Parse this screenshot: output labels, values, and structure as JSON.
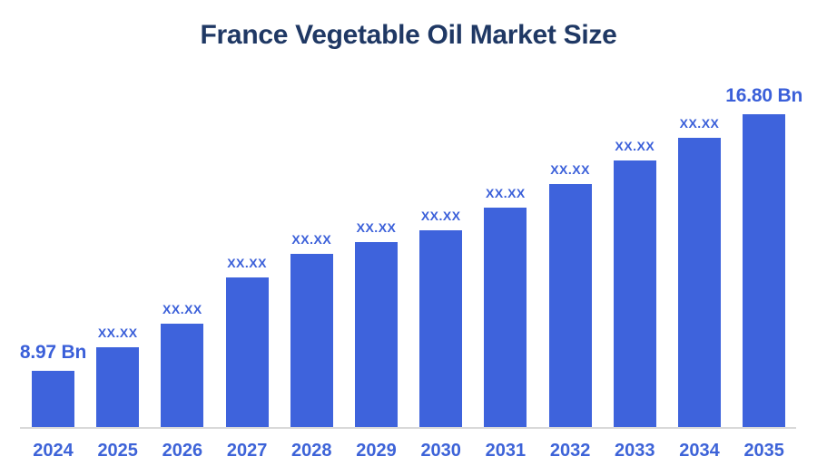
{
  "page": {
    "background": "#FFFFFF"
  },
  "header": {
    "title": "France Vegetable Oil Market Size"
  },
  "colors": {
    "bar_fill": "#3E63DC",
    "value_label_text": "#3A5FD9",
    "tick_label_text": "#3D63D8",
    "title_text": "#1F3864",
    "axis_line": "#D9D9D9"
  },
  "chart_data": {
    "type": "bar",
    "title": "France Vegetable Oil Market Size",
    "unit": "Bn",
    "categories": [
      "2024",
      "2025",
      "2026",
      "2027",
      "2028",
      "2029",
      "2030",
      "2031",
      "2032",
      "2033",
      "2034",
      "2035"
    ],
    "values": [
      8.97,
      9.7,
      10.42,
      11.81,
      12.53,
      12.89,
      13.26,
      13.94,
      14.66,
      15.37,
      16.08,
      16.8
    ],
    "value_labels": [
      "8.97 Bn",
      "XX.XX",
      "XX.XX",
      "XX.XX",
      "XX.XX",
      "XX.XX",
      "XX.XX",
      "XX.XX",
      "XX.XX",
      "XX.XX",
      "XX.XX",
      "16.80 Bn"
    ],
    "first_value": "8.97 Bn",
    "last_value": "16.80 Bn",
    "xlabel": "",
    "ylabel": "",
    "legend": false,
    "grid": false,
    "y_axis_visible": false,
    "value_at_baseline": 7.23
  }
}
